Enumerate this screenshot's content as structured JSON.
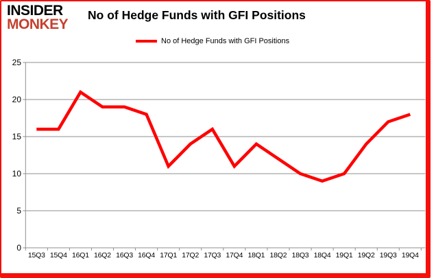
{
  "logo": {
    "line1": "INSIDER",
    "line2": "MONKEY"
  },
  "header": {
    "title": "No of Hedge Funds with GFI Positions"
  },
  "legend": {
    "label": "No of Hedge Funds with GFI Positions"
  },
  "colors": {
    "series_line": "#ff0000",
    "legend_swatch": "#fe0000",
    "grid": "#8f8f8f",
    "axis": "#8f8f8f",
    "frame_red": "#f5100c",
    "logo_red": "#c5402e",
    "text": "#000000",
    "background": "#ffffff"
  },
  "chart_data": {
    "type": "line",
    "title": "No of Hedge Funds with GFI Positions",
    "categories": [
      "15Q3",
      "15Q4",
      "16Q1",
      "16Q2",
      "16Q3",
      "16Q4",
      "17Q1",
      "17Q2",
      "17Q3",
      "17Q4",
      "18Q1",
      "18Q2",
      "18Q3",
      "18Q4",
      "19Q1",
      "19Q2",
      "19Q3",
      "19Q4"
    ],
    "series": [
      {
        "name": "No of Hedge Funds with GFI Positions",
        "values": [
          16,
          16,
          21,
          19,
          19,
          18,
          11,
          14,
          16,
          11,
          14,
          12,
          10,
          9,
          10,
          14,
          17,
          18
        ],
        "color": "#ff0000"
      }
    ],
    "xlabel": "",
    "ylabel": "",
    "ylim": [
      0,
      25
    ],
    "yticks": [
      0,
      5,
      10,
      15,
      20,
      25
    ],
    "grid": true,
    "legend_position": "top-center",
    "markers": false
  }
}
